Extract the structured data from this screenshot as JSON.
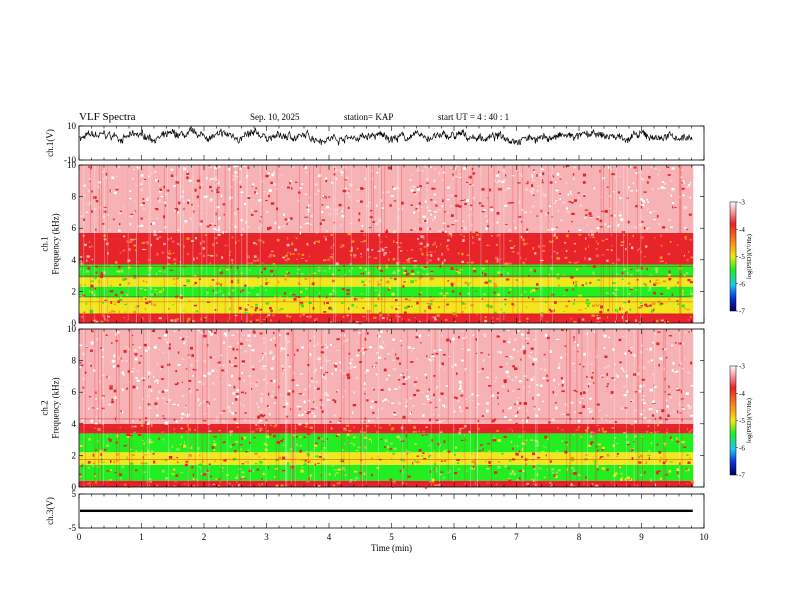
{
  "header": {
    "title": "VLF Spectra",
    "date": "Sep. 10, 2025",
    "station": "station= KAP",
    "start": "start  UT =   4 : 40 : 1"
  },
  "chart_data": [
    {
      "type": "line",
      "name": "ch1-waveform",
      "ylabel": "ch.1(V)",
      "ylim": [
        -10,
        10
      ],
      "yticks": [
        "10",
        "-10"
      ],
      "xlim": [
        0,
        10
      ],
      "data_end_min": 9.82,
      "series": [
        {
          "name": "ch.1",
          "mean": 3.5,
          "amplitude": 4
        }
      ]
    },
    {
      "type": "heatmap",
      "name": "ch1-spectrogram",
      "ylabel": "ch.1\nFrequency (kHz)",
      "ylim": [
        0,
        10
      ],
      "yticks": [
        "0",
        "2",
        "4",
        "6",
        "8",
        "10"
      ],
      "xlim": [
        0,
        10
      ],
      "data_end_min": 9.82,
      "bands": [
        {
          "from_khz": 0,
          "to_khz": 0.6,
          "level": "red"
        },
        {
          "from_khz": 0.6,
          "to_khz": 1.6,
          "level": "yellow"
        },
        {
          "from_khz": 1.6,
          "to_khz": 2.3,
          "level": "green"
        },
        {
          "from_khz": 2.3,
          "to_khz": 2.9,
          "level": "yellow"
        },
        {
          "from_khz": 2.9,
          "to_khz": 3.7,
          "level": "green"
        },
        {
          "from_khz": 3.7,
          "to_khz": 5.7,
          "level": "red"
        },
        {
          "from_khz": 5.7,
          "to_khz": 10,
          "level": "white-red"
        }
      ],
      "colorbar": {
        "label": "log(PSD)(V²/Hz)",
        "ticks": [
          "-3",
          "-4",
          "-5",
          "-6",
          "-7"
        ],
        "range": [
          -7,
          -3
        ]
      }
    },
    {
      "type": "heatmap",
      "name": "ch2-spectrogram",
      "ylabel": "ch.2\nFrequency (kHz)",
      "ylim": [
        0,
        10
      ],
      "yticks": [
        "0",
        "2",
        "4",
        "6",
        "8",
        "10"
      ],
      "xlim": [
        0,
        10
      ],
      "data_end_min": 9.82,
      "bands": [
        {
          "from_khz": 0,
          "to_khz": 0.4,
          "level": "red"
        },
        {
          "from_khz": 0.4,
          "to_khz": 1.4,
          "level": "green"
        },
        {
          "from_khz": 1.4,
          "to_khz": 2.2,
          "level": "yellow"
        },
        {
          "from_khz": 2.2,
          "to_khz": 3.4,
          "level": "green"
        },
        {
          "from_khz": 3.4,
          "to_khz": 4.0,
          "level": "red"
        },
        {
          "from_khz": 4.0,
          "to_khz": 10,
          "level": "white-red"
        }
      ],
      "colorbar": {
        "label": "log(PSD)(V²/Hz)",
        "ticks": [
          "-3",
          "-4",
          "-5",
          "-6",
          "-7"
        ],
        "range": [
          -7,
          -3
        ]
      }
    },
    {
      "type": "line",
      "name": "ch3-waveform",
      "ylabel": "ch.3(V)",
      "ylim": [
        -5,
        5
      ],
      "yticks": [
        "5",
        "-5"
      ],
      "xlim": [
        0,
        10
      ],
      "data_end_min": 9.82,
      "series": [
        {
          "name": "ch.3",
          "mean": 0,
          "band_min": -0.3,
          "band_max": 0.4
        }
      ]
    }
  ],
  "xaxis": {
    "label": "Time (min)",
    "ticks": [
      "0",
      "1",
      "2",
      "3",
      "4",
      "5",
      "6",
      "7",
      "8",
      "9",
      "10"
    ]
  },
  "colors": {
    "red": "#e8242b",
    "white-red": "#f6b2b4",
    "yellow": "#f2e61c",
    "green": "#22ee22",
    "cyan": "#1ec8f0",
    "blue": "#1030d8",
    "navy": "#000066"
  }
}
